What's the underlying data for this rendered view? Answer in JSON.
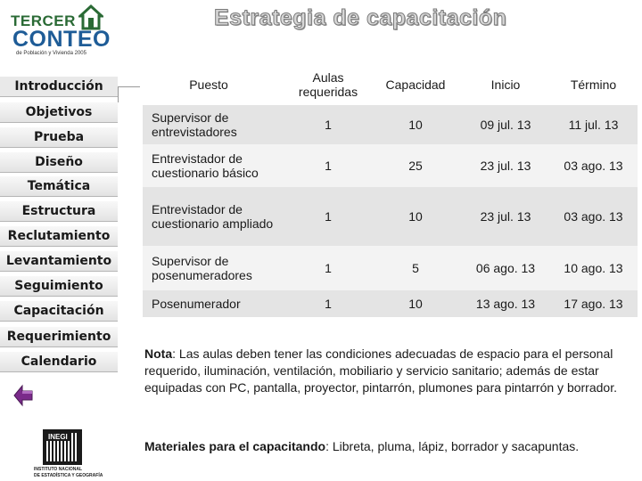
{
  "logo": {
    "line1": "TERCER",
    "line2": "CONTEO",
    "line3": "de Población y Vivienda 2005"
  },
  "title": "Estrategia de capacitación",
  "sidebar": {
    "items": [
      {
        "label": "Introducción"
      },
      {
        "label": "Objetivos"
      },
      {
        "label": "Prueba"
      },
      {
        "label": "Diseño"
      },
      {
        "label": "Temática"
      },
      {
        "label": "Estructura"
      },
      {
        "label": "Reclutamiento"
      },
      {
        "label": "Levantamiento"
      },
      {
        "label": "Seguimiento"
      },
      {
        "label": "Capacitación"
      },
      {
        "label": "Requerimiento"
      },
      {
        "label": "Calendario"
      }
    ]
  },
  "inegi": {
    "tag": "INEGI",
    "line1": "INSTITUTO NACIONAL",
    "line2": "DE ESTADÍSTICA Y GEOGRAFÍA"
  },
  "table": {
    "headers": [
      "Puesto",
      "Aulas requeridas",
      "Capacidad",
      "Inicio",
      "Término"
    ],
    "rows": [
      [
        "Supervisor de entrevistadores",
        "1",
        "10",
        "09 jul. 13",
        "11 jul. 13"
      ],
      [
        "Entrevistador de cuestionario básico",
        "1",
        "25",
        "23 jul. 13",
        "03 ago. 13"
      ],
      [
        "Entrevistador de cuestionario ampliado",
        "1",
        "10",
        "23 jul. 13",
        "03 ago. 13"
      ],
      [
        "Supervisor de posenumeradores",
        "1",
        "5",
        "06 ago. 13",
        "10 ago. 13"
      ],
      [
        "Posenumerador",
        "1",
        "10",
        "13 ago. 13",
        "17 ago. 13"
      ]
    ]
  },
  "note": {
    "label": "Nota",
    "text": ": Las aulas deben tener las condiciones adecuadas de espacio para el personal requerido, iluminación, ventilación, mobiliario y servicio sanitario; además de estar equipadas con PC, pantalla, proyector, pintarrón, plumones para pintarrón y borrador."
  },
  "materials": {
    "label": "Materiales para el capacitando",
    "text": ": Libreta, pluma, lápiz, borrador y sacapuntas."
  },
  "icons": {
    "back": "back-arrow-icon",
    "house": "house-icon"
  },
  "colors": {
    "accent_green": "#2a6a35",
    "accent_blue": "#1e5c97",
    "back_arrow": "#7a2a8a",
    "row_shade": "#e4e4e4"
  }
}
